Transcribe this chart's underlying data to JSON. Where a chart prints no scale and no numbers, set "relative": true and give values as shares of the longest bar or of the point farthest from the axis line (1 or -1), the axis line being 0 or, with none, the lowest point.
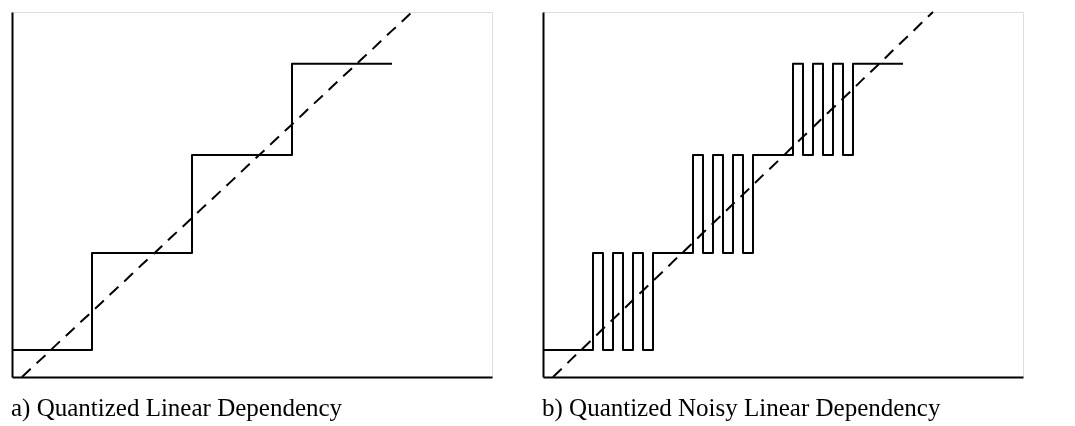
{
  "chart_data": [
    {
      "type": "step",
      "title": "a) Quantized Linear Dependency",
      "relative": true,
      "tick_labels": false,
      "categories": [
        null,
        null,
        null,
        null,
        null,
        null,
        null,
        null,
        null,
        null,
        null,
        null,
        null,
        null,
        null,
        null,
        null,
        null,
        null,
        null,
        null,
        null,
        null,
        null,
        null,
        null,
        null,
        null,
        null,
        null,
        null,
        null,
        null,
        null,
        null,
        null,
        null,
        null,
        null,
        null,
        null,
        null,
        null,
        null,
        null,
        null,
        null,
        null,
        null
      ],
      "series": [
        {
          "color": "#000000",
          "line_style": "solid",
          "values": [
            0.074,
            0.074,
            0.074,
            0.074,
            0.074,
            0.074,
            0.074,
            0.074,
            0.34,
            0.34,
            0.34,
            0.34,
            0.34,
            0.34,
            0.34,
            0.34,
            0.34,
            0.34,
            0.608,
            0.608,
            0.608,
            0.608,
            0.608,
            0.608,
            0.608,
            0.608,
            0.608,
            0.608,
            0.858,
            0.858,
            0.858,
            0.858,
            0.858,
            0.858,
            0.858,
            0.858,
            0.858,
            0.858,
            0.858,
            null,
            null,
            null,
            null,
            null,
            null,
            null,
            null,
            null,
            null
          ]
        },
        {
          "type": "line",
          "color": "#000000",
          "line_style": "dashed",
          "values": [
            null,
            0,
            0.026,
            0.051,
            0.077,
            0.103,
            0.128,
            0.154,
            0.179,
            0.205,
            0.231,
            0.256,
            0.282,
            0.308,
            0.333,
            0.359,
            0.385,
            0.41,
            0.436,
            0.462,
            0.487,
            0.513,
            0.538,
            0.564,
            0.59,
            0.615,
            0.641,
            0.667,
            0.692,
            0.718,
            0.744,
            0.769,
            0.795,
            0.821,
            0.846,
            0.872,
            0.897,
            0.923,
            0.949,
            0.974,
            1,
            null,
            null,
            null,
            null,
            null,
            null,
            null,
            null
          ]
        }
      ]
    },
    {
      "type": "step",
      "title": "b) Quantized Noisy Linear Dependency",
      "relative": true,
      "tick_labels": false,
      "categories": [
        null,
        null,
        null,
        null,
        null,
        null,
        null,
        null,
        null,
        null,
        null,
        null,
        null,
        null,
        null,
        null,
        null,
        null,
        null,
        null,
        null,
        null,
        null,
        null,
        null,
        null,
        null,
        null,
        null,
        null,
        null,
        null,
        null,
        null,
        null,
        null,
        null,
        null,
        null,
        null,
        null,
        null,
        null,
        null,
        null,
        null,
        null,
        null,
        null
      ],
      "series": [
        {
          "color": "#000000",
          "line_style": "solid",
          "values": [
            0.074,
            0.074,
            0.074,
            0.074,
            0.074,
            0.34,
            0.074,
            0.34,
            0.074,
            0.34,
            0.074,
            0.34,
            0.34,
            0.34,
            0.34,
            0.608,
            0.34,
            0.608,
            0.34,
            0.608,
            0.34,
            0.608,
            0.608,
            0.608,
            0.608,
            0.858,
            0.608,
            0.858,
            0.608,
            0.858,
            0.608,
            0.858,
            0.858,
            0.858,
            0.858,
            0.858,
            0.858,
            null,
            null,
            null,
            null,
            null,
            null,
            null,
            null,
            null,
            null,
            null,
            null
          ]
        },
        {
          "type": "line",
          "color": "#000000",
          "line_style": "dashed",
          "values": [
            null,
            0,
            0.026,
            0.053,
            0.079,
            0.105,
            0.132,
            0.158,
            0.184,
            0.211,
            0.237,
            0.263,
            0.289,
            0.316,
            0.342,
            0.368,
            0.395,
            0.421,
            0.447,
            0.474,
            0.5,
            0.526,
            0.553,
            0.579,
            0.605,
            0.632,
            0.658,
            0.684,
            0.711,
            0.737,
            0.763,
            0.789,
            0.816,
            0.842,
            0.868,
            0.895,
            0.921,
            0.947,
            0.974,
            1,
            null,
            null,
            null,
            null,
            null,
            null,
            null,
            null,
            null
          ]
        }
      ]
    }
  ]
}
